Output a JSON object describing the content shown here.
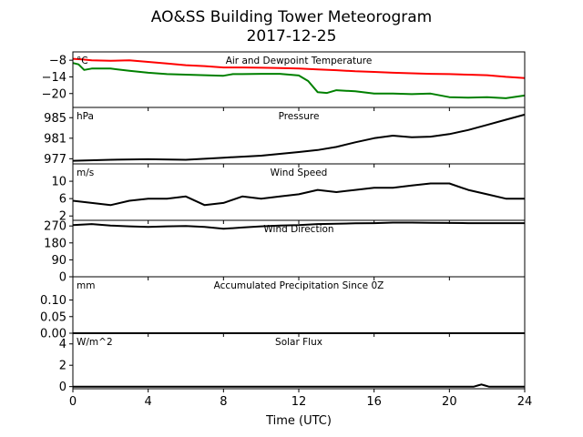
{
  "figure": {
    "title_line1": "AO&SS Building Tower Meteorogram",
    "title_line2": "2017-12-25"
  },
  "chart_data": {
    "type": "line",
    "xlabel": "Time (UTC)",
    "xlim": [
      0,
      24
    ],
    "xticks": [
      0,
      4,
      8,
      12,
      16,
      20,
      24
    ],
    "panels": [
      {
        "title": "Air and Dewpoint Temperature",
        "unit": "°C",
        "ylim": [
          -25,
          -5
        ],
        "yticks": [
          -8,
          -14,
          -20
        ],
        "series": [
          {
            "color": "#ff0000",
            "x": [
              0,
              0.5,
              1,
              2,
              3,
              4,
              5,
              6,
              7,
              8,
              9,
              10,
              11,
              12,
              13,
              14,
              15,
              16,
              17,
              18,
              19,
              20,
              21,
              22,
              23,
              24
            ],
            "y": [
              -7.5,
              -7.7,
              -8.0,
              -8.2,
              -8.0,
              -8.6,
              -9.2,
              -9.8,
              -10.1,
              -10.6,
              -10.6,
              -10.7,
              -10.8,
              -11.0,
              -11.3,
              -11.6,
              -12.0,
              -12.2,
              -12.5,
              -12.7,
              -12.9,
              -13.0,
              -13.2,
              -13.4,
              -14.0,
              -14.4
            ]
          },
          {
            "color": "#008000",
            "x": [
              0,
              0.3,
              0.6,
              1,
              2,
              3,
              4,
              5,
              6,
              7,
              8,
              8.5,
              9,
              10,
              11,
              12,
              12.5,
              13,
              13.5,
              14,
              15,
              16,
              17,
              18,
              19,
              20,
              21,
              22,
              23,
              24
            ],
            "y": [
              -9.0,
              -9.5,
              -11.5,
              -11.0,
              -11.0,
              -11.8,
              -12.5,
              -13.0,
              -13.2,
              -13.4,
              -13.6,
              -13.0,
              -13.0,
              -12.9,
              -12.9,
              -13.5,
              -15.5,
              -19.5,
              -19.8,
              -18.8,
              -19.2,
              -20.0,
              -20.0,
              -20.2,
              -20.0,
              -21.3,
              -21.5,
              -21.3,
              -21.7,
              -20.7
            ]
          }
        ]
      },
      {
        "title": "Pressure",
        "unit": "hPa",
        "ylim": [
          976,
          987
        ],
        "yticks": [
          977,
          981,
          985
        ],
        "series": [
          {
            "color": "#000000",
            "x": [
              0,
              2,
              4,
              6,
              8,
              10,
              12,
              13,
              14,
              15,
              16,
              17,
              18,
              19,
              20,
              21,
              22,
              23,
              24
            ],
            "y": [
              976.6,
              976.8,
              976.9,
              976.8,
              977.2,
              977.6,
              978.3,
              978.7,
              979.3,
              980.2,
              981.0,
              981.5,
              981.2,
              981.3,
              981.8,
              982.6,
              983.6,
              984.6,
              985.6
            ]
          }
        ]
      },
      {
        "title": "Wind Speed",
        "unit": "m/s",
        "ylim": [
          1,
          14
        ],
        "yticks": [
          2,
          6,
          10
        ],
        "series": [
          {
            "color": "#000000",
            "x": [
              0,
              1,
              2,
              3,
              4,
              5,
              6,
              7,
              8,
              9,
              10,
              11,
              12,
              13,
              14,
              15,
              16,
              17,
              18,
              19,
              20,
              21,
              22,
              23,
              24
            ],
            "y": [
              5.5,
              5.0,
              4.5,
              5.5,
              6.0,
              6.0,
              6.5,
              4.5,
              5.0,
              6.5,
              6.0,
              6.5,
              7.0,
              8.0,
              7.5,
              8.0,
              8.5,
              8.5,
              9.0,
              9.5,
              9.5,
              8.0,
              7.0,
              6.0,
              6.0
            ]
          }
        ]
      },
      {
        "title": "Wind Direction",
        "unit": "",
        "ylim": [
          0,
          300
        ],
        "yticks": [
          0,
          90,
          180,
          270
        ],
        "series": [
          {
            "color": "#000000",
            "x": [
              0,
              1,
              2,
              3,
              4,
              5,
              6,
              7,
              8,
              9,
              10,
              11,
              12,
              13,
              14,
              15,
              16,
              17,
              18,
              19,
              20,
              21,
              22,
              23,
              24
            ],
            "y": [
              275,
              280,
              272,
              268,
              265,
              268,
              270,
              265,
              255,
              262,
              268,
              272,
              275,
              280,
              282,
              284,
              285,
              288,
              288,
              287,
              286,
              285,
              285,
              285,
              285
            ]
          }
        ]
      },
      {
        "title": "Accumulated Precipitation Since 0Z",
        "unit": "mm",
        "ylim": [
          0,
          0.17
        ],
        "yticks": [
          0.0,
          0.05,
          0.1
        ],
        "series": [
          {
            "color": "#000000",
            "x": [
              0,
              24
            ],
            "y": [
              0.0,
              0.0
            ]
          }
        ]
      },
      {
        "title": "Solar Flux",
        "unit": "W/m^2",
        "ylim": [
          -0.2,
          5.0
        ],
        "yticks": [
          0,
          2,
          4
        ],
        "series": [
          {
            "color": "#000000",
            "x": [
              0,
              21.3,
              21.5,
              21.7,
              21.9,
              22.1,
              24
            ],
            "y": [
              0.0,
              0.0,
              0.1,
              0.2,
              0.1,
              0.0,
              0.0
            ]
          }
        ]
      }
    ]
  }
}
